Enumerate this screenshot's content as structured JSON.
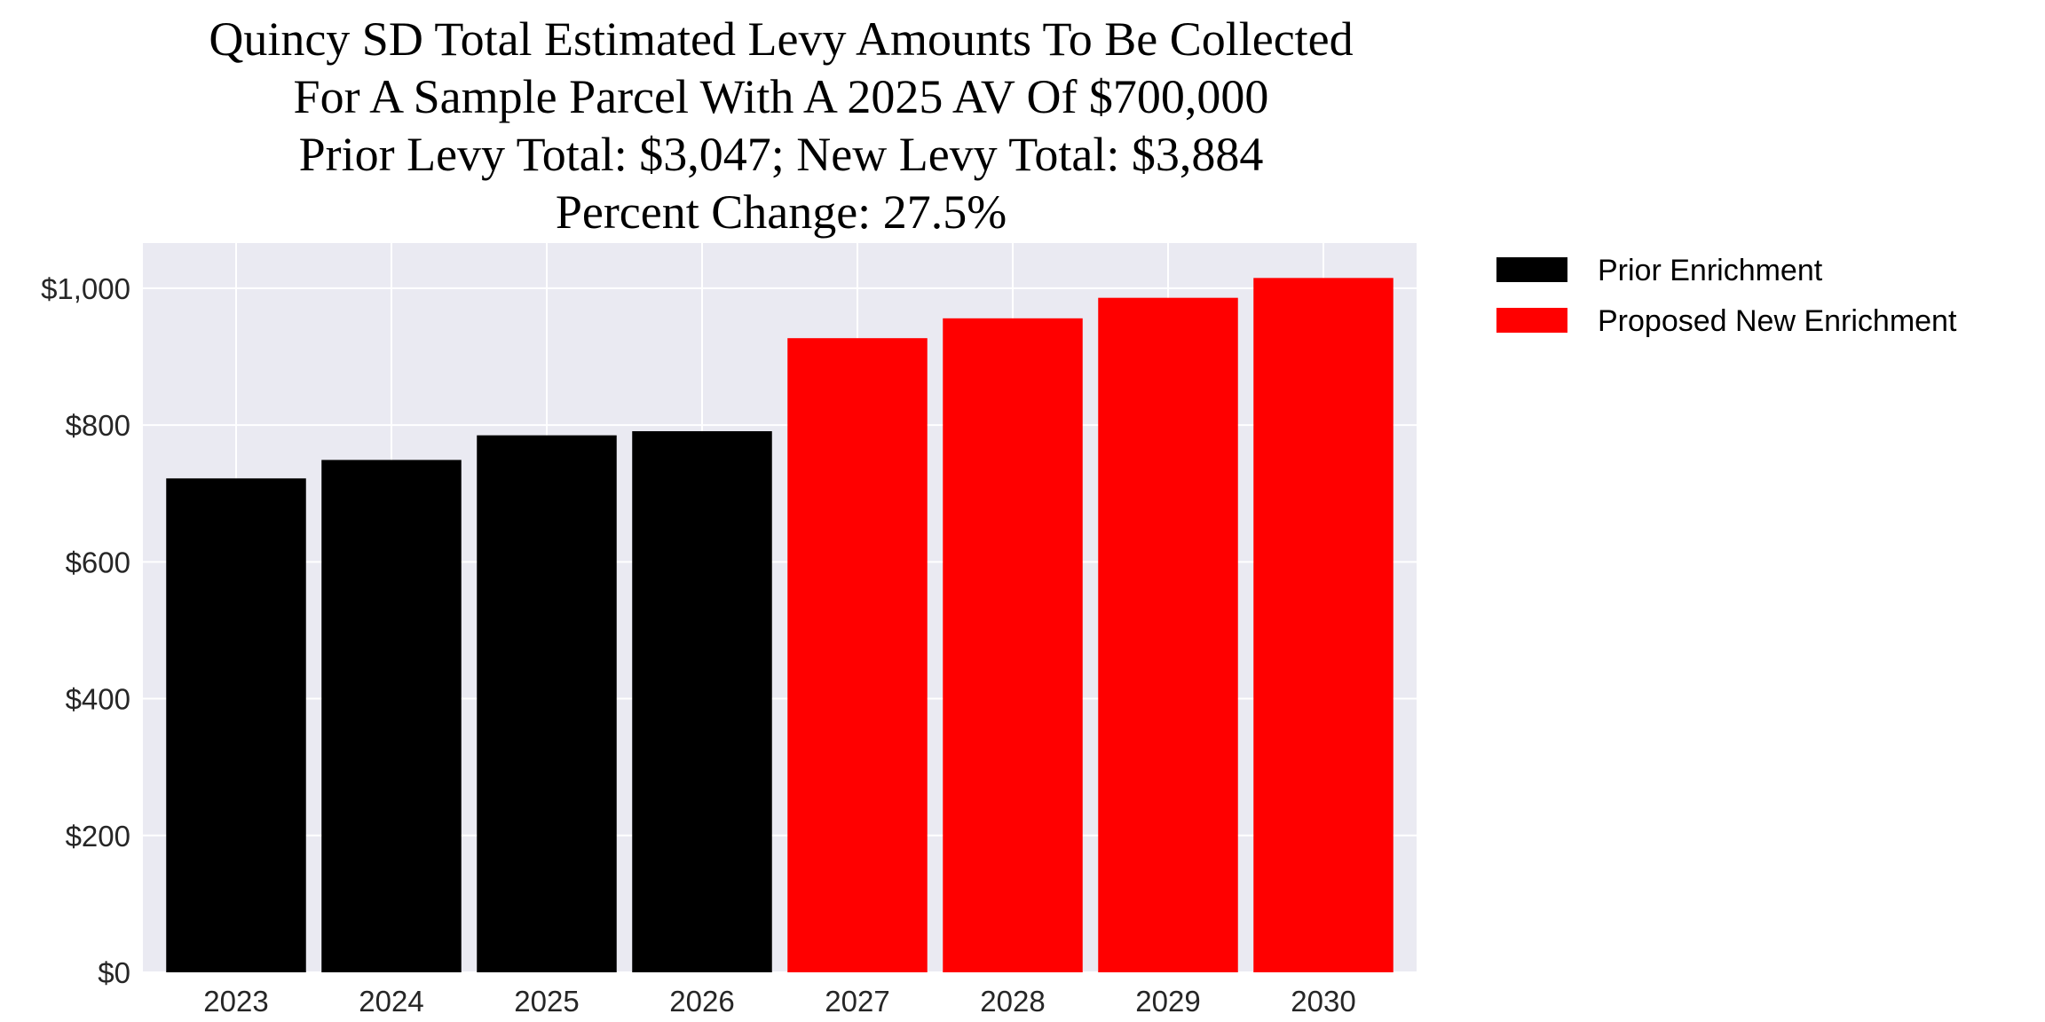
{
  "chart_data": {
    "type": "bar",
    "title_lines": [
      "Quincy SD Total Estimated Levy Amounts To Be Collected",
      "For A Sample Parcel With A 2025 AV Of $700,000",
      "Prior Levy Total:  $3,047; New Levy Total: $3,884",
      "Percent Change: 27.5%"
    ],
    "categories": [
      "2023",
      "2024",
      "2025",
      "2026",
      "2027",
      "2028",
      "2029",
      "2030"
    ],
    "series": [
      {
        "name": "Prior Enrichment",
        "color": "#000000",
        "values": [
          722,
          749,
          785,
          791,
          null,
          null,
          null,
          null
        ]
      },
      {
        "name": "Proposed New Enrichment",
        "color": "#ff0000",
        "values": [
          null,
          null,
          null,
          null,
          927,
          956,
          986,
          1015
        ]
      }
    ],
    "ylim": [
      0,
      1066
    ],
    "yticks": [
      0,
      200,
      400,
      600,
      800,
      1000
    ],
    "ytick_labels": [
      "$0",
      "$200",
      "$400",
      "$600",
      "$800",
      "$1,000"
    ],
    "xlabel": "",
    "ylabel": "",
    "grid": true,
    "background": "#eaeaf2",
    "legend_placement": "outside-top-right"
  }
}
